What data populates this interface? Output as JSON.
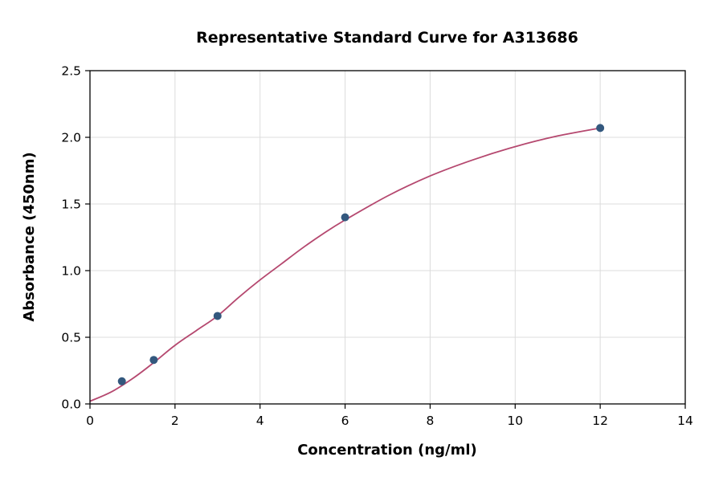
{
  "chart_data": {
    "type": "scatter",
    "title": "Representative Standard Curve for A313686",
    "xlabel": "Concentration (ng/ml)",
    "ylabel": "Absorbance (450nm)",
    "xlim": [
      0,
      14
    ],
    "ylim": [
      0,
      2.5
    ],
    "xticks": [
      0,
      2,
      4,
      6,
      8,
      10,
      12,
      14
    ],
    "xtick_labels": [
      "0",
      "2",
      "4",
      "6",
      "8",
      "10",
      "12",
      "14"
    ],
    "yticks": [
      0,
      0.5,
      1,
      1.5,
      2,
      2.5
    ],
    "ytick_labels": [
      "0.0",
      "0.5",
      "1.0",
      "1.5",
      "2.0",
      "2.5"
    ],
    "grid": true,
    "legend": "none",
    "points": [
      {
        "x": 0.75,
        "y": 0.17
      },
      {
        "x": 1.5,
        "y": 0.33
      },
      {
        "x": 3,
        "y": 0.66
      },
      {
        "x": 6,
        "y": 1.4
      },
      {
        "x": 12,
        "y": 2.07
      }
    ],
    "fit_curve": [
      [
        0,
        0.02
      ],
      [
        0.5,
        0.09
      ],
      [
        1,
        0.19
      ],
      [
        1.5,
        0.31
      ],
      [
        2,
        0.44
      ],
      [
        2.5,
        0.55
      ],
      [
        3,
        0.66
      ],
      [
        3.5,
        0.8
      ],
      [
        4,
        0.93
      ],
      [
        4.5,
        1.05
      ],
      [
        5,
        1.17
      ],
      [
        5.5,
        1.28
      ],
      [
        6,
        1.38
      ],
      [
        7,
        1.56
      ],
      [
        8,
        1.71
      ],
      [
        9,
        1.83
      ],
      [
        10,
        1.93
      ],
      [
        11,
        2.01
      ],
      [
        12,
        2.07
      ]
    ],
    "colors": {
      "point": "#33587e",
      "line": "#b5486f",
      "grid": "#dcdcdc",
      "axis": "#000000",
      "background": "#ffffff"
    }
  }
}
